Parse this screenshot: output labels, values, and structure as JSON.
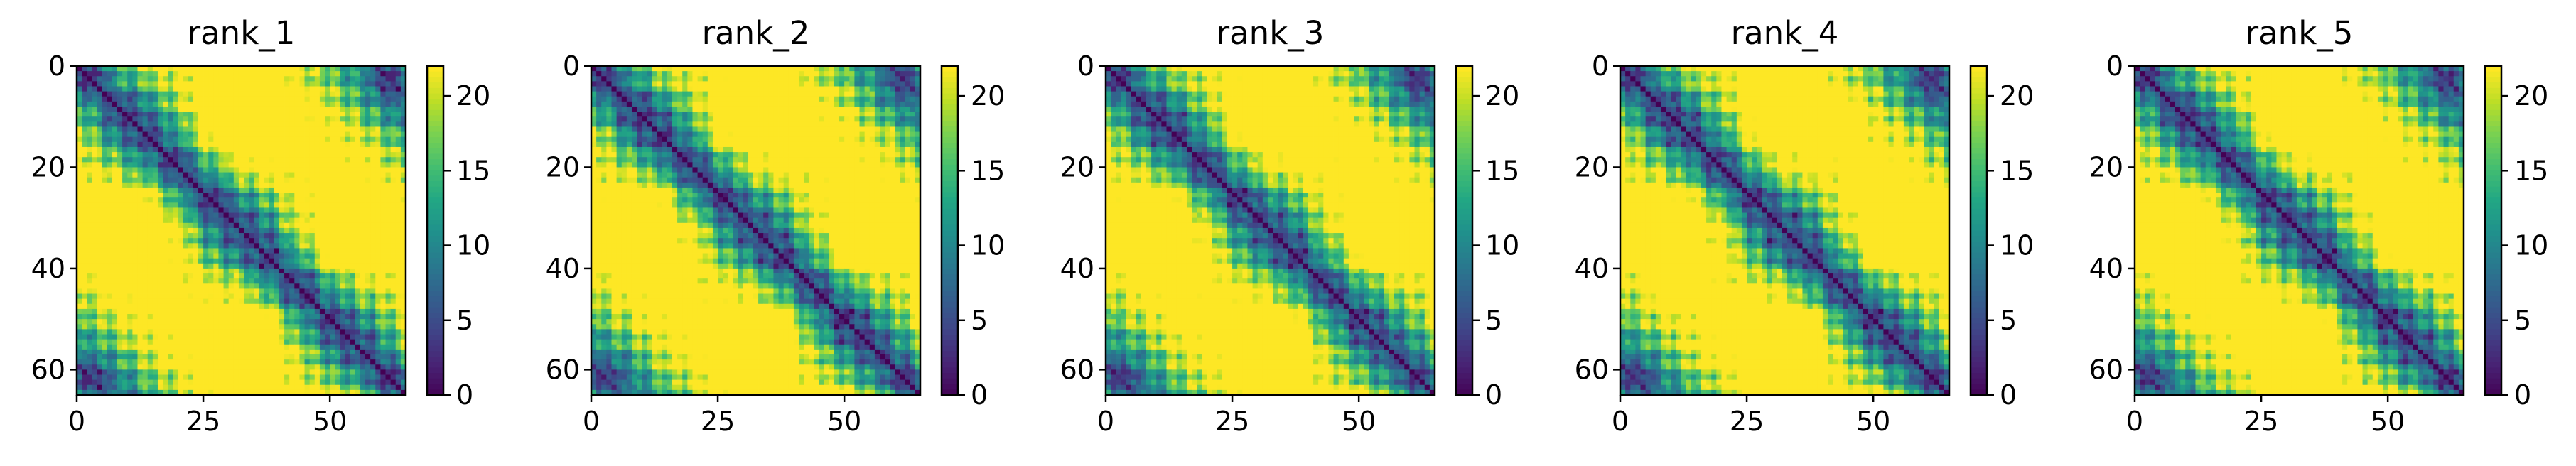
{
  "chart_data": [
    {
      "type": "heatmap",
      "title": "rank_1",
      "size": 65,
      "xticks": [
        "0",
        "25",
        "50"
      ],
      "yticks": [
        "0",
        "20",
        "40",
        "60"
      ],
      "colorbar": {
        "min": 0,
        "max": 22,
        "ticks": [
          "0",
          "5",
          "10",
          "15",
          "20"
        ]
      },
      "colormap": "viridis",
      "description": "Pairwise distance map, symmetric, zero diagonal, saturated (~22) far from structure"
    },
    {
      "type": "heatmap",
      "title": "rank_2",
      "size": 65,
      "xticks": [
        "0",
        "25",
        "50"
      ],
      "yticks": [
        "0",
        "20",
        "40",
        "60"
      ],
      "colorbar": {
        "min": 0,
        "max": 22,
        "ticks": [
          "0",
          "5",
          "10",
          "15",
          "20"
        ]
      },
      "colormap": "viridis"
    },
    {
      "type": "heatmap",
      "title": "rank_3",
      "size": 65,
      "xticks": [
        "0",
        "25",
        "50"
      ],
      "yticks": [
        "0",
        "20",
        "40",
        "60"
      ],
      "colorbar": {
        "min": 0,
        "max": 22,
        "ticks": [
          "0",
          "5",
          "10",
          "15",
          "20"
        ]
      },
      "colormap": "viridis"
    },
    {
      "type": "heatmap",
      "title": "rank_4",
      "size": 65,
      "xticks": [
        "0",
        "25",
        "50"
      ],
      "yticks": [
        "0",
        "20",
        "40",
        "60"
      ],
      "colorbar": {
        "min": 0,
        "max": 22,
        "ticks": [
          "0",
          "5",
          "10",
          "15",
          "20"
        ]
      },
      "colormap": "viridis"
    },
    {
      "type": "heatmap",
      "title": "rank_5",
      "size": 65,
      "xticks": [
        "0",
        "25",
        "50"
      ],
      "yticks": [
        "0",
        "20",
        "40",
        "60"
      ],
      "colorbar": {
        "min": 0,
        "max": 22,
        "ticks": [
          "0",
          "5",
          "10",
          "15",
          "20"
        ]
      },
      "colormap": "viridis"
    }
  ]
}
